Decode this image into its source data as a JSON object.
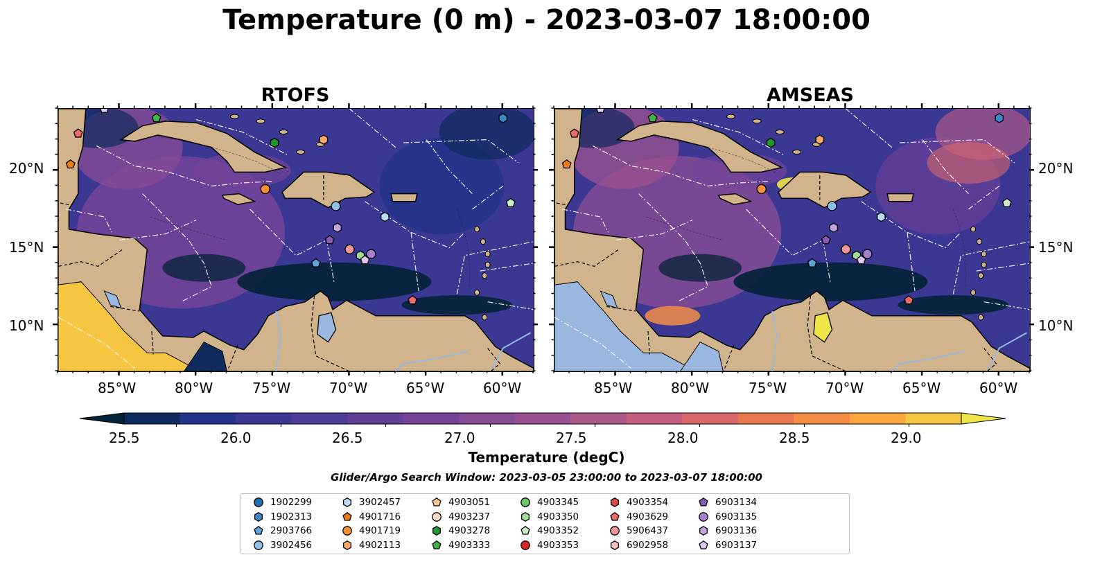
{
  "title": "Temperature (0 m) - 2023-03-07 18:00:00",
  "panels": [
    {
      "title": "RTOFS"
    },
    {
      "title": "AMSEAS"
    }
  ],
  "axes": {
    "lon_ticks": [
      "85°W",
      "80°W",
      "75°W",
      "70°W",
      "65°W",
      "60°W"
    ],
    "lat_ticks": [
      "20°N",
      "15°N",
      "10°N"
    ],
    "lon_range": [
      -89,
      -58
    ],
    "lat_range": [
      7,
      24
    ]
  },
  "colorbar": {
    "label": "Temperature (degC)",
    "ticks": [
      "25.5",
      "26.0",
      "26.5",
      "27.0",
      "27.5",
      "28.0",
      "28.5",
      "29.0"
    ],
    "range": [
      25.5,
      29.25
    ],
    "extend": "both",
    "colors": [
      "#052338",
      "#0f2b5e",
      "#24338a",
      "#3b3893",
      "#4f3b98",
      "#623f98",
      "#744498",
      "#854b95",
      "#985090",
      "#ad5889",
      "#c35f7c",
      "#d8686a",
      "#e9784f",
      "#f68d44",
      "#f9a640",
      "#f6c541",
      "#eee546"
    ]
  },
  "search_window": "Glider/Argo Search Window: 2023-03-05 23:00:00 to 2023-03-07 18:00:00",
  "legend": [
    {
      "id": "1902299",
      "color": "#1f6fb3",
      "marker": "circle"
    },
    {
      "id": "1902313",
      "color": "#3d88c6",
      "marker": "hexagon"
    },
    {
      "id": "2903766",
      "color": "#61a5d8",
      "marker": "pentagon"
    },
    {
      "id": "3902456",
      "color": "#8ec1ea",
      "marker": "circle"
    },
    {
      "id": "3902457",
      "color": "#bcdcf7",
      "marker": "hexagon"
    },
    {
      "id": "4901716",
      "color": "#f07a12",
      "marker": "pentagon"
    },
    {
      "id": "4901719",
      "color": "#f8903a",
      "marker": "circle"
    },
    {
      "id": "4902113",
      "color": "#fbaa66",
      "marker": "hexagon"
    },
    {
      "id": "4903051",
      "color": "#fbc894",
      "marker": "pentagon"
    },
    {
      "id": "4903237",
      "color": "#fde0c3",
      "marker": "circle"
    },
    {
      "id": "4903278",
      "color": "#1f9a2c",
      "marker": "hexagon"
    },
    {
      "id": "4903333",
      "color": "#43b346",
      "marker": "pentagon"
    },
    {
      "id": "4903345",
      "color": "#6dc76a",
      "marker": "circle"
    },
    {
      "id": "4903350",
      "color": "#9ede97",
      "marker": "hexagon"
    },
    {
      "id": "4903352",
      "color": "#cdf2c8",
      "marker": "pentagon"
    },
    {
      "id": "4903353",
      "color": "#d62728",
      "marker": "circle"
    },
    {
      "id": "4903354",
      "color": "#e04848",
      "marker": "hexagon"
    },
    {
      "id": "4903629",
      "color": "#ec6a6a",
      "marker": "pentagon"
    },
    {
      "id": "5906437",
      "color": "#f29696",
      "marker": "circle"
    },
    {
      "id": "6902958",
      "color": "#f8c1c1",
      "marker": "hexagon"
    },
    {
      "id": "6903134",
      "color": "#8a5bb5",
      "marker": "pentagon"
    },
    {
      "id": "6903135",
      "color": "#a77fcc",
      "marker": "circle"
    },
    {
      "id": "6903136",
      "color": "#c3a4de",
      "marker": "hexagon"
    },
    {
      "id": "6903137",
      "color": "#dccaf0",
      "marker": "pentagon"
    }
  ],
  "platforms": [
    {
      "id": "6903137",
      "lon": -86.0,
      "lat": 24.0
    },
    {
      "id": "4903333",
      "lon": -82.6,
      "lat": 23.4
    },
    {
      "id": "4903629",
      "lon": -87.7,
      "lat": 22.4
    },
    {
      "id": "4901716",
      "lon": -88.2,
      "lat": 20.4
    },
    {
      "id": "1902313",
      "lon": -60.0,
      "lat": 23.4
    },
    {
      "id": "4903278",
      "lon": -74.9,
      "lat": 21.8
    },
    {
      "id": "4902113",
      "lon": -71.7,
      "lat": 22.0
    },
    {
      "id": "4901719",
      "lon": -75.5,
      "lat": 18.8
    },
    {
      "id": "3902456",
      "lon": -70.9,
      "lat": 17.7
    },
    {
      "id": "3902457",
      "lon": -67.7,
      "lat": 17.0
    },
    {
      "id": "4903352",
      "lon": -59.5,
      "lat": 17.9
    },
    {
      "id": "6903136",
      "lon": -70.8,
      "lat": 16.3
    },
    {
      "id": "6903134",
      "lon": -71.3,
      "lat": 15.5
    },
    {
      "id": "5906437",
      "lon": -70.0,
      "lat": 14.9
    },
    {
      "id": "4903350",
      "lon": -69.3,
      "lat": 14.5
    },
    {
      "id": "6903135",
      "lon": -68.6,
      "lat": 14.6
    },
    {
      "id": "6903137",
      "lon": -69.0,
      "lat": 14.2
    },
    {
      "id": "2903766",
      "lon": -72.2,
      "lat": 14.0
    },
    {
      "id": "4903629",
      "lon": -65.9,
      "lat": 11.6
    }
  ]
}
